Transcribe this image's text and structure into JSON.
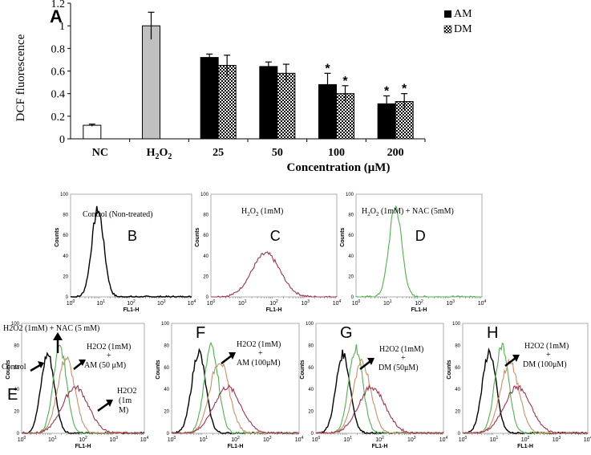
{
  "chart_data": [
    {
      "type": "bar",
      "panel_label": "A",
      "categories": [
        "NC",
        "H2O2",
        "25",
        "50",
        "100",
        "200"
      ],
      "category_labels": [
        {
          "text": "NC"
        },
        {
          "main": "H",
          "sub1": "2",
          "mid": "O",
          "sub2": "2"
        },
        {
          "text": "25"
        },
        {
          "text": "50"
        },
        {
          "text": "100"
        },
        {
          "text": "200"
        }
      ],
      "series": [
        {
          "name": "NC",
          "values": [
            0.12,
            null,
            null,
            null,
            null,
            null
          ],
          "errors": [
            0.01,
            null,
            null,
            null,
            null,
            null
          ],
          "color": "#ffffff"
        },
        {
          "name": "H2O2",
          "values": [
            null,
            1.0,
            null,
            null,
            null,
            null
          ],
          "errors": [
            null,
            0.12,
            null,
            null,
            null,
            null
          ],
          "color": "#c0c0c0"
        },
        {
          "name": "AM",
          "values": [
            null,
            null,
            0.72,
            0.64,
            0.48,
            0.31
          ],
          "errors": [
            null,
            null,
            0.03,
            0.04,
            0.1,
            0.07
          ],
          "significant": [
            false,
            false,
            false,
            false,
            true,
            true
          ],
          "color": "#000000"
        },
        {
          "name": "DM",
          "values": [
            null,
            null,
            0.65,
            0.58,
            0.4,
            0.33
          ],
          "errors": [
            null,
            null,
            0.09,
            0.08,
            0.07,
            0.07
          ],
          "significant": [
            false,
            false,
            false,
            false,
            true,
            true
          ],
          "color": "checker"
        }
      ],
      "legend": [
        {
          "label": "AM"
        },
        {
          "label": "DM"
        }
      ],
      "ylabel": "DCF fluorescence",
      "xlabel": "Concentration (μM)",
      "ylim": [
        0,
        1.2
      ],
      "yticks": [
        "0",
        "0.2",
        "0.4",
        "0.6",
        "0.8",
        "1",
        "1.2"
      ],
      "significance_marker": "*",
      "legend_position": "top-right"
    },
    {
      "type": "histogram-panels",
      "x_axis_label": "FL1-H",
      "y_axis_label": "Counts",
      "x_ticks": [
        "0",
        "1",
        "2",
        "3",
        "4"
      ],
      "x_tick_base": "10",
      "y_ticks": [
        "0",
        "20",
        "40",
        "60",
        "80",
        "100"
      ],
      "x_scale": "log",
      "x_range": [
        1,
        10000
      ],
      "y_range": [
        0,
        100
      ],
      "series_colors": {
        "control": "#000000",
        "nac": "#4db34d",
        "treatment": "#c89060",
        "h2o2": "#a03050"
      },
      "panels": [
        {
          "label": "B",
          "title": "Control (Non-treated)",
          "curves": [
            {
              "name": "control",
              "peak_log": 0.9,
              "sigma": 0.2,
              "height": 85
            }
          ]
        },
        {
          "label": "C",
          "title_parts": {
            "h": "H",
            "s1": "2",
            "o": "O",
            "s2": "2",
            "rest": " (1mM)"
          },
          "curves": [
            {
              "name": "h2o2",
              "peak_log": 1.75,
              "sigma": 0.45,
              "height": 42
            }
          ]
        },
        {
          "label": "D",
          "title_parts": {
            "h": "H",
            "s1": "2",
            "o": "O",
            "s2": "2",
            "rest": " (1mM)  + NAC (5mM)"
          },
          "curves": [
            {
              "name": "nac",
              "peak_log": 1.25,
              "sigma": 0.2,
              "height": 88
            }
          ]
        },
        {
          "label": "E",
          "annotations": {
            "top": "H2O2 (1mM) + NAC (5 mM)",
            "control": "Control",
            "treat1": "H2O2 (1mM)",
            "treat2": "+",
            "treat3": "AM (50 μM)",
            "h2o2a": "H2O2",
            "h2o2b": "(1m",
            "h2o2c": "M)"
          },
          "curves": [
            {
              "name": "control",
              "peak_log": 0.85,
              "sigma": 0.22,
              "height": 72
            },
            {
              "name": "nac",
              "peak_log": 1.25,
              "sigma": 0.22,
              "height": 78
            },
            {
              "name": "treatment",
              "peak_log": 1.45,
              "sigma": 0.28,
              "height": 68
            },
            {
              "name": "h2o2",
              "peak_log": 1.75,
              "sigma": 0.42,
              "height": 42
            }
          ]
        },
        {
          "label": "F",
          "annotations": {
            "a": "H2O2 (1mM)",
            "b": "+",
            "c": "AM (100μM)"
          },
          "curves": [
            {
              "name": "control",
              "peak_log": 0.85,
              "sigma": 0.22,
              "height": 74
            },
            {
              "name": "nac",
              "peak_log": 1.25,
              "sigma": 0.22,
              "height": 80
            },
            {
              "name": "treatment",
              "peak_log": 1.5,
              "sigma": 0.3,
              "height": 66
            },
            {
              "name": "h2o2",
              "peak_log": 1.75,
              "sigma": 0.42,
              "height": 42
            }
          ]
        },
        {
          "label": "G",
          "annotations": {
            "a": "H2O2 (1mM)",
            "b": "+",
            "c": "DM (50μM)"
          },
          "curves": [
            {
              "name": "control",
              "peak_log": 0.85,
              "sigma": 0.22,
              "height": 72
            },
            {
              "name": "nac",
              "peak_log": 1.25,
              "sigma": 0.22,
              "height": 78
            },
            {
              "name": "treatment",
              "peak_log": 1.45,
              "sigma": 0.28,
              "height": 64
            },
            {
              "name": "h2o2",
              "peak_log": 1.75,
              "sigma": 0.42,
              "height": 42
            }
          ]
        },
        {
          "label": "H",
          "annotations": {
            "a": "H2O2 (1mM)",
            "b": "+",
            "c": "DM (100μM)"
          },
          "curves": [
            {
              "name": "control",
              "peak_log": 0.85,
              "sigma": 0.22,
              "height": 74
            },
            {
              "name": "nac",
              "peak_log": 1.25,
              "sigma": 0.22,
              "height": 80
            },
            {
              "name": "treatment",
              "peak_log": 1.5,
              "sigma": 0.3,
              "height": 64
            },
            {
              "name": "h2o2",
              "peak_log": 1.75,
              "sigma": 0.42,
              "height": 42
            }
          ]
        }
      ]
    }
  ]
}
